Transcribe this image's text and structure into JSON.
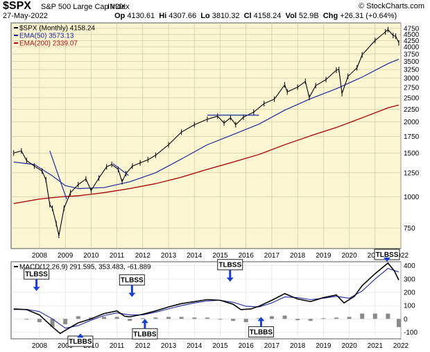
{
  "header": {
    "symbol": "$SPX",
    "name": "S&P 500 Large Cap Index",
    "index_tag": "INDX",
    "brand": "© StockCharts.com",
    "date": "27-May-2022",
    "open_label": "Op",
    "open": "4130.61",
    "high_label": "Hi",
    "high": "4307.66",
    "low_label": "Lo",
    "low": "3810.32",
    "close_label": "Cl",
    "close": "4158.24",
    "vol_label": "Vol",
    "vol": "52.9B",
    "chg_label": "Chg",
    "chg": "+26.31 (+0.64%)"
  },
  "chart_data": [
    {
      "type": "line",
      "panel": "price",
      "scale": "log",
      "legend_placement": "top-left",
      "legend": [
        {
          "text": "$SPX (Monthly) 4158.24",
          "color": "#000000"
        },
        {
          "text": "EMA(50) 3573.13",
          "color": "#1a2aa0"
        },
        {
          "text": "EMA(200) 2339.07",
          "color": "#b01010"
        }
      ],
      "y_ticks": [
        750,
        1000,
        1250,
        1500,
        1750,
        2000,
        2250,
        2500,
        2750,
        3000,
        3250,
        3500,
        3750,
        4000,
        4250,
        4500,
        4750
      ],
      "x_ticks": [
        "2008",
        "2009",
        "2010",
        "2011",
        "2012",
        "2013",
        "2014",
        "2015",
        "2016",
        "2017",
        "2018",
        "2019",
        "2020",
        "2021",
        "2022"
      ],
      "x_range": [
        2007.4,
        2022.5
      ],
      "ylim": [
        620,
        5000
      ],
      "grid": true,
      "colors": {
        "price": "#000000",
        "ema50": "#1a2aa0",
        "ema200": "#b01010",
        "trendline": "#1a2aa0"
      },
      "series": [
        {
          "key": "price",
          "x": [
            2007.5,
            2007.8,
            2008.0,
            2008.3,
            2008.6,
            2008.75,
            2008.9,
            2009.0,
            2009.15,
            2009.25,
            2009.45,
            2009.7,
            2010.0,
            2010.3,
            2010.5,
            2010.8,
            2011.1,
            2011.3,
            2011.55,
            2011.7,
            2011.85,
            2012.1,
            2012.4,
            2012.7,
            2013.0,
            2013.5,
            2014.0,
            2014.5,
            2015.0,
            2015.4,
            2015.65,
            2015.9,
            2016.1,
            2016.4,
            2016.8,
            2017.2,
            2017.6,
            2018.0,
            2018.1,
            2018.5,
            2018.8,
            2018.95,
            2019.2,
            2019.6,
            2020.0,
            2020.1,
            2020.22,
            2020.45,
            2020.8,
            2021.0,
            2021.5,
            2021.9,
            2022.0,
            2022.2,
            2022.3,
            2022.42
          ],
          "y": [
            1500,
            1530,
            1400,
            1330,
            1270,
            1170,
            930,
            900,
            780,
            700,
            900,
            1040,
            1120,
            1180,
            1060,
            1190,
            1320,
            1350,
            1290,
            1150,
            1240,
            1330,
            1370,
            1410,
            1470,
            1620,
            1820,
            1950,
            2050,
            2110,
            1980,
            2080,
            1950,
            2090,
            2190,
            2370,
            2470,
            2820,
            2640,
            2760,
            2910,
            2510,
            2800,
            2960,
            3230,
            3250,
            2600,
            3050,
            3300,
            3720,
            4250,
            4600,
            4700,
            4450,
            4420,
            4158
          ]
        },
        {
          "key": "ema50",
          "x": [
            2007.5,
            2008.3,
            2009.0,
            2009.5,
            2010.0,
            2011.0,
            2012.0,
            2013.0,
            2014.0,
            2015.0,
            2016.0,
            2017.0,
            2018.0,
            2019.0,
            2020.0,
            2021.0,
            2022.0,
            2022.42
          ],
          "y": [
            1380,
            1350,
            1215,
            1110,
            1080,
            1090,
            1150,
            1250,
            1420,
            1620,
            1780,
            1960,
            2230,
            2480,
            2720,
            3030,
            3430,
            3573
          ]
        },
        {
          "key": "ema200",
          "x": [
            2007.5,
            2008.5,
            2009.3,
            2010.0,
            2011.0,
            2012.0,
            2013.0,
            2014.0,
            2015.0,
            2016.0,
            2017.0,
            2018.0,
            2019.0,
            2020.0,
            2021.0,
            2022.0,
            2022.42
          ],
          "y": [
            940,
            980,
            1000,
            1010,
            1040,
            1080,
            1130,
            1200,
            1290,
            1380,
            1480,
            1620,
            1760,
            1900,
            2080,
            2280,
            2339
          ]
        }
      ],
      "trendlines": [
        {
          "x": [
            2008.9,
            2009.55
          ],
          "y": [
            1530,
            980
          ]
        },
        {
          "x": [
            2011.35,
            2011.95
          ],
          "y": [
            1360,
            1220
          ]
        },
        {
          "x": [
            2015.0,
            2017.0
          ],
          "y": [
            2130,
            2130
          ]
        }
      ]
    },
    {
      "type": "line",
      "panel": "macd",
      "legend": [
        {
          "text": "MACD(12,26,9) 291.595, 353.483, -61.889",
          "color": "#000000"
        }
      ],
      "y_ticks": [
        -100,
        0,
        100,
        200,
        300,
        400
      ],
      "x_ticks": [
        "2008",
        "2009",
        "2010",
        "2011",
        "2012",
        "2013",
        "2014",
        "2015",
        "2016",
        "2017",
        "2018",
        "2019",
        "2020",
        "2021",
        "2022"
      ],
      "ylim": [
        -150,
        430
      ],
      "colors": {
        "macd": "#000000",
        "signal": "#1a2aa0",
        "histogram": "#8a8a8a"
      },
      "series": [
        {
          "key": "macd",
          "x": [
            2007.5,
            2008.0,
            2008.5,
            2009.0,
            2009.3,
            2009.6,
            2010.0,
            2010.5,
            2011.0,
            2011.5,
            2011.8,
            2012.0,
            2012.5,
            2013.0,
            2013.5,
            2014.0,
            2014.5,
            2015.0,
            2015.5,
            2016.0,
            2016.3,
            2016.7,
            2017.0,
            2017.5,
            2018.0,
            2018.5,
            2019.0,
            2019.5,
            2020.0,
            2020.3,
            2020.7,
            2021.0,
            2021.5,
            2022.0,
            2022.25,
            2022.42
          ],
          "y": [
            75,
            70,
            30,
            -60,
            -110,
            -75,
            -30,
            0,
            40,
            60,
            20,
            15,
            35,
            60,
            90,
            115,
            130,
            145,
            140,
            110,
            70,
            75,
            95,
            140,
            190,
            150,
            130,
            160,
            180,
            120,
            170,
            250,
            340,
            420,
            360,
            292
          ]
        },
        {
          "key": "signal",
          "x": [
            2007.5,
            2008.0,
            2008.5,
            2009.0,
            2009.5,
            2010.0,
            2010.5,
            2011.0,
            2011.5,
            2012.0,
            2012.5,
            2013.0,
            2013.5,
            2014.0,
            2014.5,
            2015.0,
            2015.5,
            2016.0,
            2016.5,
            2017.0,
            2017.5,
            2018.0,
            2018.5,
            2019.0,
            2019.5,
            2020.0,
            2020.5,
            2021.0,
            2021.5,
            2022.0,
            2022.42
          ],
          "y": [
            70,
            72,
            55,
            0,
            -70,
            -50,
            -10,
            25,
            45,
            30,
            30,
            50,
            75,
            100,
            120,
            135,
            140,
            125,
            95,
            90,
            120,
            165,
            160,
            145,
            155,
            170,
            155,
            210,
            300,
            380,
            353
          ]
        },
        {
          "key": "histogram",
          "x": [
            2008.0,
            2008.5,
            2009.0,
            2009.5,
            2010.0,
            2010.5,
            2011.0,
            2011.5,
            2012.0,
            2012.5,
            2013.0,
            2013.5,
            2014.0,
            2014.5,
            2015.0,
            2015.5,
            2016.0,
            2016.5,
            2017.0,
            2017.5,
            2018.0,
            2018.5,
            2019.0,
            2019.5,
            2020.0,
            2020.5,
            2021.0,
            2021.5,
            2022.0,
            2022.42
          ],
          "y": [
            -5,
            -25,
            -60,
            -40,
            20,
            10,
            15,
            15,
            -15,
            5,
            10,
            15,
            15,
            10,
            10,
            0,
            -15,
            -25,
            5,
            20,
            25,
            -10,
            -15,
            5,
            10,
            15,
            40,
            40,
            40,
            -62
          ]
        }
      ],
      "annotations": [
        {
          "text": "TLBSS",
          "x": 2007.9,
          "y": 210,
          "arrow": "down"
        },
        {
          "text": "TLBSS",
          "x": 2011.6,
          "y": 165,
          "arrow": "down"
        },
        {
          "text": "TLBSS",
          "x": 2015.4,
          "y": 280,
          "arrow": "down"
        },
        {
          "text": "TLBSS",
          "x": 2022.2,
          "y": 430,
          "arrow": "down"
        },
        {
          "text": "TLBBS",
          "x": 2009.6,
          "y": -110,
          "arrow": "up"
        },
        {
          "text": "TLBBS",
          "x": 2012.1,
          "y": 0,
          "arrow": "up"
        },
        {
          "text": "TLBBS",
          "x": 2016.6,
          "y": 15,
          "arrow": "up"
        }
      ]
    }
  ]
}
